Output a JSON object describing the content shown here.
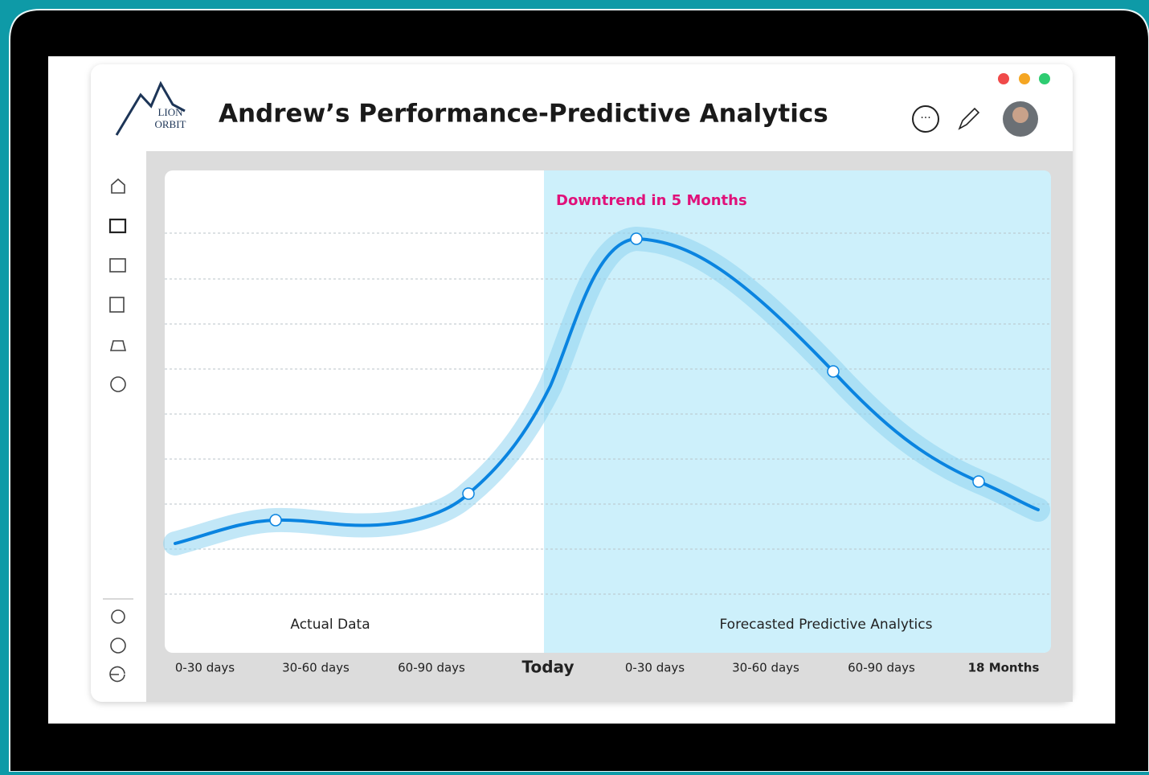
{
  "header": {
    "title": "Andrew’s Performance-Predictive Analytics",
    "logo": [
      "LION",
      "ORBIT"
    ]
  },
  "chart": {
    "annotation": "Downtrend in 5 Months",
    "regions": [
      "Actual Data",
      "Forecasted Predictive Analytics"
    ],
    "x_labels": [
      "0-30 days",
      "30-60 days",
      "60-90 days",
      "Today",
      "0-30 days",
      "30-60 days",
      "60-90 days",
      "18 Months"
    ]
  }
}
